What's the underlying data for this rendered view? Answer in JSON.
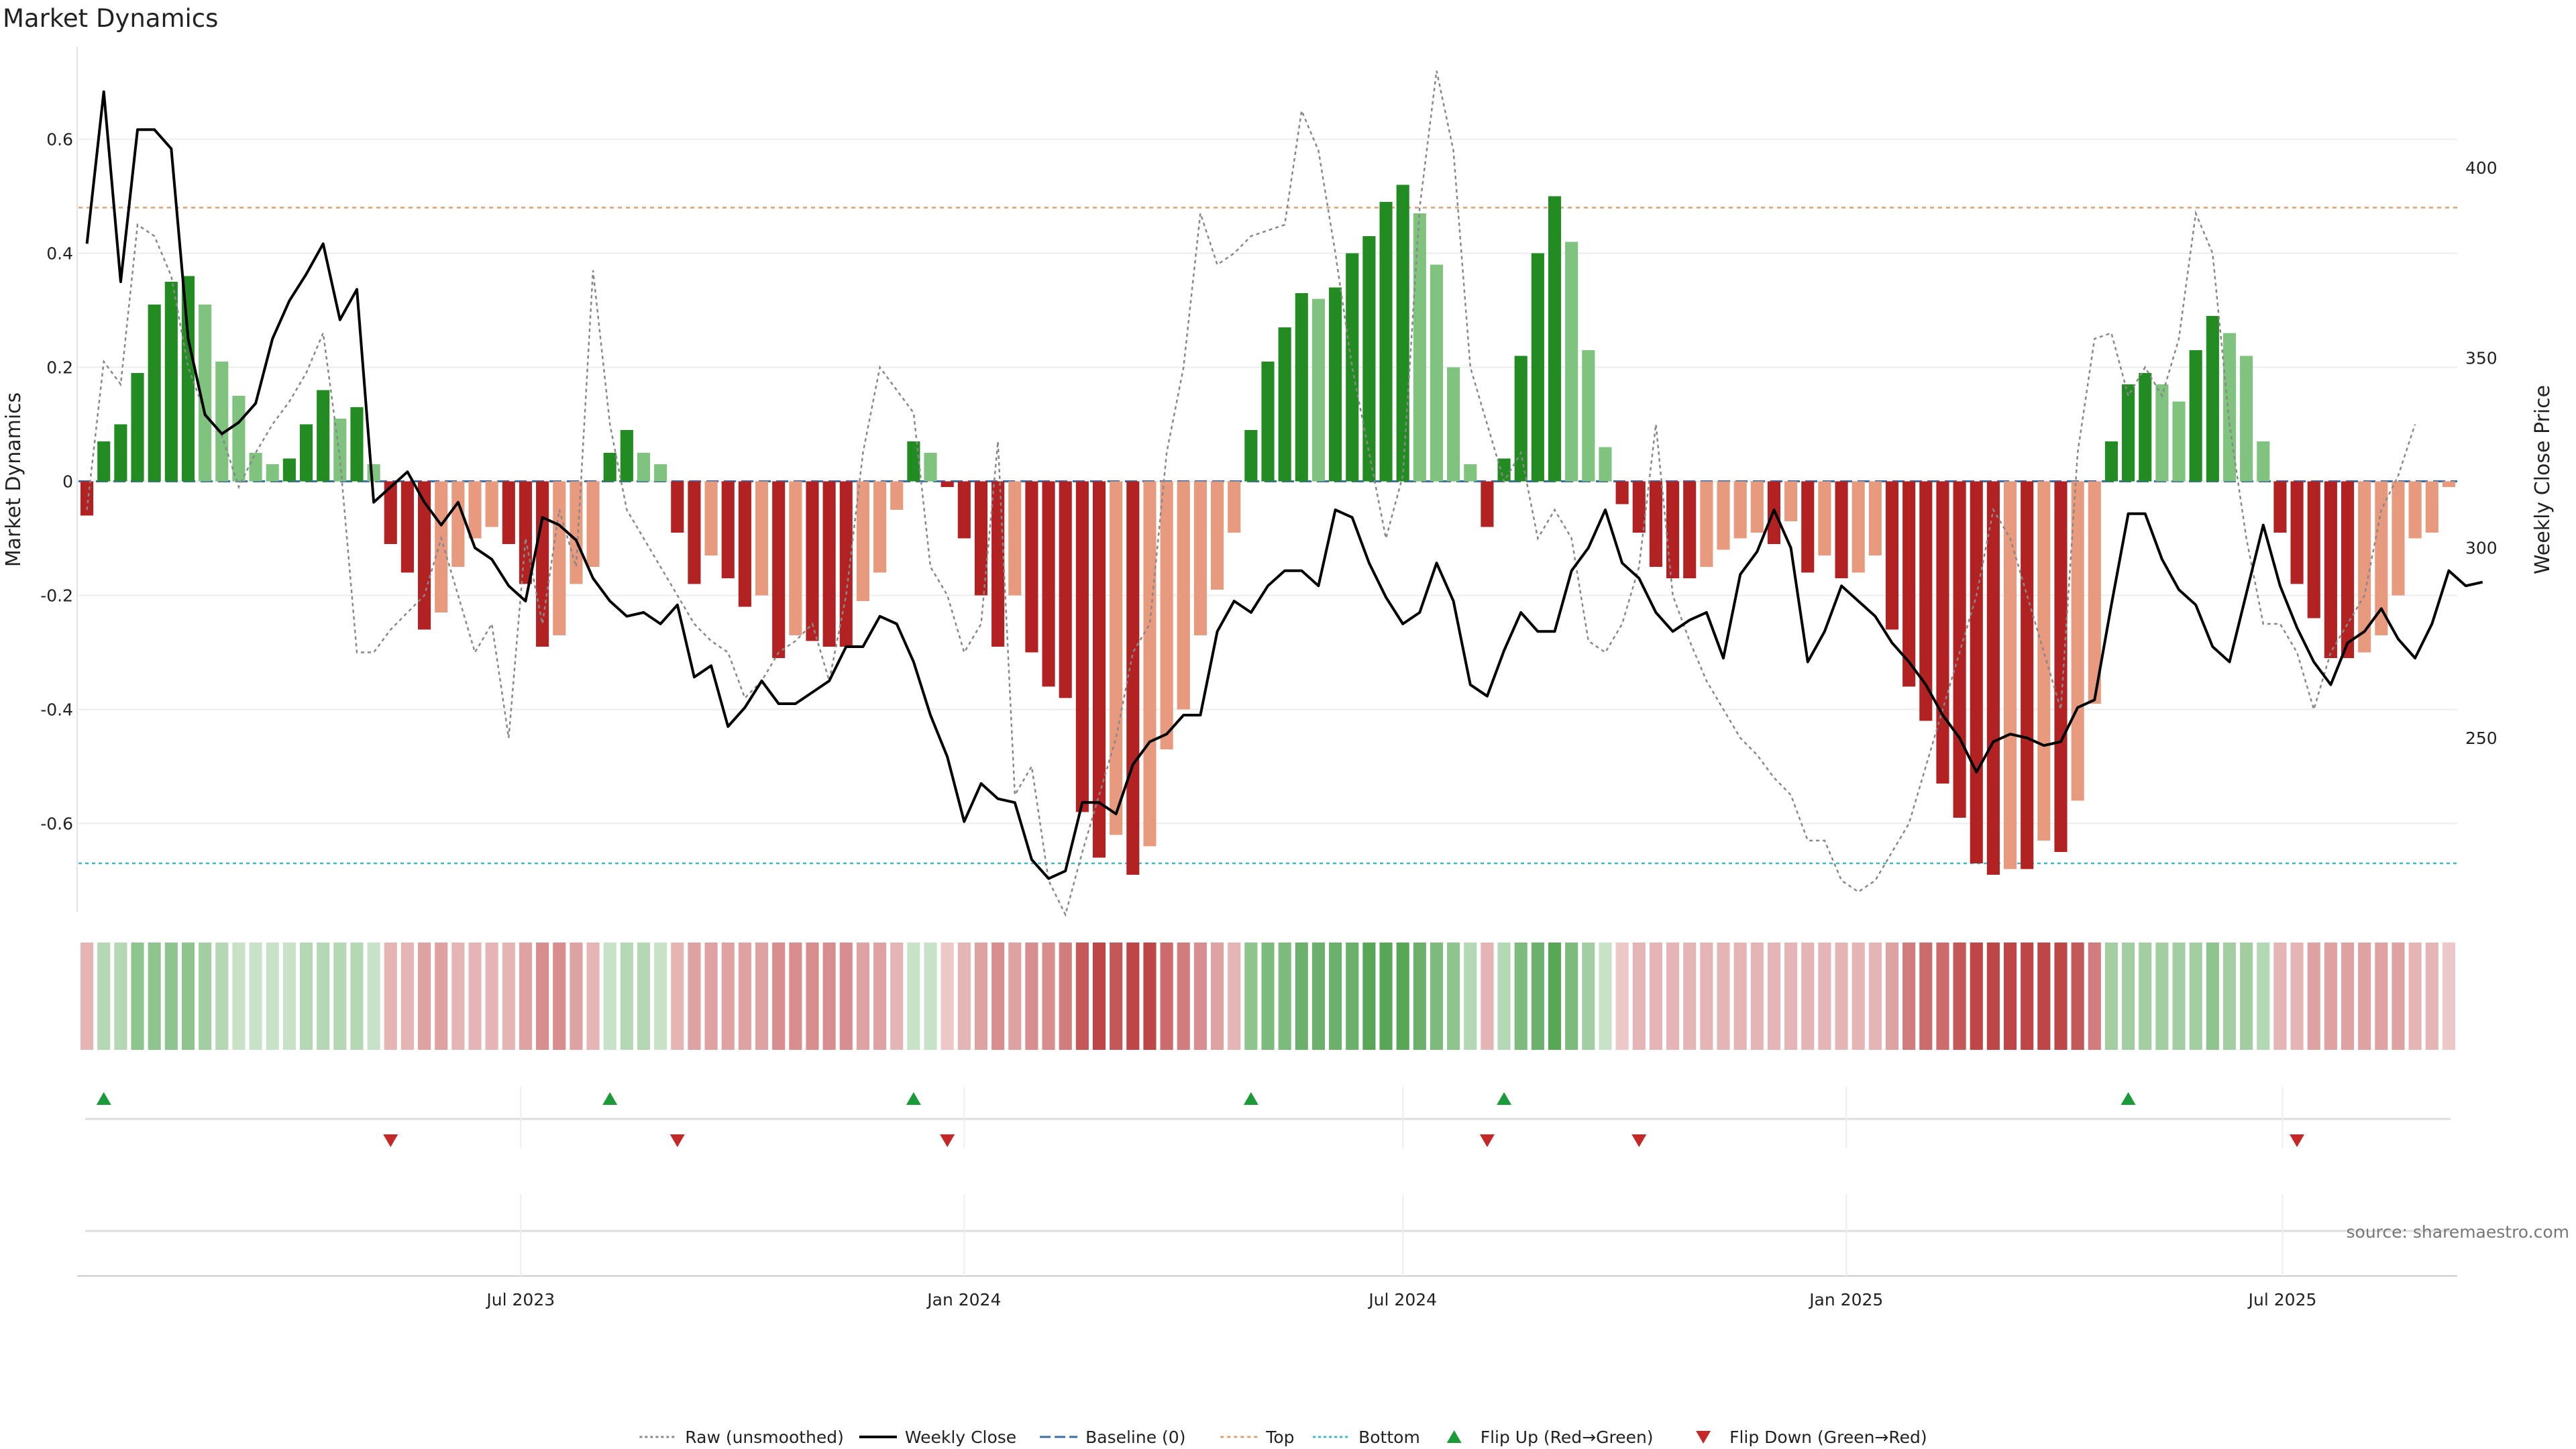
{
  "title": "Market Dynamics",
  "source": "source: sharemaestro.com",
  "colors": {
    "up_strong": "#228b22",
    "up_weak": "#7fc37f",
    "down_strong": "#b22222",
    "down_weak": "#e89a7e",
    "close": "#000000",
    "raw": "#888888",
    "baseline": "#3a6ea5",
    "top": "#e0a070",
    "bottom": "#3bb8c8",
    "flip_up": "#1a9a3a",
    "flip_down": "#c62828"
  },
  "legend": [
    {
      "key": "raw",
      "label": "Raw (unsmoothed)"
    },
    {
      "key": "close",
      "label": "Weekly Close"
    },
    {
      "key": "baseline",
      "label": "Baseline (0)"
    },
    {
      "key": "top",
      "label": "Top"
    },
    {
      "key": "bottom",
      "label": "Bottom"
    },
    {
      "key": "flip_up",
      "label": "Flip Up (Red→Green)"
    },
    {
      "key": "flip_down",
      "label": "Flip Down (Green→Red)"
    }
  ],
  "chart_data": {
    "type": "bar",
    "start_date": "2023-01-02",
    "left_axis": {
      "label": "Market Dynamics",
      "ylim": [
        -0.75,
        0.75
      ],
      "ticks": [
        "0.6",
        "0.4",
        "0.2",
        "0",
        "-0.2",
        "-0.4",
        "-0.6"
      ],
      "tick_values": [
        0.6,
        0.4,
        0.2,
        0,
        -0.2,
        -0.4,
        -0.6
      ]
    },
    "right_axis": {
      "label": "Weekly Close Price",
      "ylim": [
        205,
        430
      ],
      "ticks": [
        "400",
        "350",
        "300",
        "250"
      ],
      "tick_values": [
        400,
        350,
        300,
        250
      ]
    },
    "x_ticks": [
      {
        "label": "Jul 2023",
        "date": "2023-07-01"
      },
      {
        "label": "Jan 2024",
        "date": "2024-01-01"
      },
      {
        "label": "Jul 2024",
        "date": "2024-07-01"
      },
      {
        "label": "Jan 2025",
        "date": "2025-01-01"
      },
      {
        "label": "Jul 2025",
        "date": "2025-07-01"
      }
    ],
    "top_level": 0.48,
    "bottom_level": -0.67,
    "baseline": 0,
    "grid": true,
    "legend_position": "bottom",
    "smoothed": [
      -0.06,
      0.07,
      0.1,
      0.19,
      0.31,
      0.35,
      0.36,
      0.31,
      0.21,
      0.15,
      0.05,
      0.03,
      0.04,
      0.1,
      0.16,
      0.11,
      0.13,
      0.03,
      -0.11,
      -0.16,
      -0.26,
      -0.23,
      -0.15,
      -0.1,
      -0.08,
      -0.11,
      -0.18,
      -0.29,
      -0.27,
      -0.18,
      -0.15,
      0.05,
      0.09,
      0.05,
      0.03,
      -0.09,
      -0.18,
      -0.13,
      -0.17,
      -0.22,
      -0.2,
      -0.31,
      -0.27,
      -0.28,
      -0.29,
      -0.29,
      -0.21,
      -0.16,
      -0.05,
      0.07,
      0.05,
      -0.01,
      -0.1,
      -0.2,
      -0.29,
      -0.2,
      -0.3,
      -0.36,
      -0.38,
      -0.58,
      -0.66,
      -0.62,
      -0.69,
      -0.64,
      -0.47,
      -0.4,
      -0.27,
      -0.19,
      -0.09,
      0.09,
      0.21,
      0.27,
      0.33,
      0.32,
      0.34,
      0.4,
      0.43,
      0.49,
      0.52,
      0.47,
      0.38,
      0.2,
      0.03,
      -0.08,
      0.04,
      0.22,
      0.4,
      0.5,
      0.42,
      0.23,
      0.06,
      -0.04,
      -0.09,
      -0.15,
      -0.17,
      -0.17,
      -0.15,
      -0.12,
      -0.1,
      -0.09,
      -0.11,
      -0.07,
      -0.16,
      -0.13,
      -0.17,
      -0.16,
      -0.13,
      -0.26,
      -0.36,
      -0.42,
      -0.53,
      -0.59,
      -0.67,
      -0.69,
      -0.68,
      -0.68,
      -0.63,
      -0.65,
      -0.56,
      -0.39,
      0.07,
      0.17,
      0.19,
      0.17,
      0.14,
      0.23,
      0.29,
      0.26,
      0.22,
      0.07,
      -0.09,
      -0.18,
      -0.24,
      -0.31,
      -0.31,
      -0.3,
      -0.27,
      -0.2,
      -0.1,
      -0.09,
      -0.01
    ],
    "raw": [
      -0.05,
      0.21,
      0.17,
      0.45,
      0.43,
      0.36,
      0.2,
      0.12,
      0.08,
      -0.01,
      0.05,
      0.1,
      0.14,
      0.19,
      0.26,
      0.04,
      -0.3,
      -0.3,
      -0.26,
      -0.23,
      -0.2,
      -0.1,
      -0.2,
      -0.3,
      -0.25,
      -0.45,
      -0.1,
      -0.25,
      -0.05,
      -0.15,
      0.37,
      0.1,
      -0.05,
      -0.1,
      -0.15,
      -0.2,
      -0.25,
      -0.28,
      -0.3,
      -0.38,
      -0.35,
      -0.3,
      -0.28,
      -0.25,
      -0.35,
      -0.2,
      0.05,
      0.2,
      0.16,
      0.12,
      -0.15,
      -0.2,
      -0.3,
      -0.25,
      0.07,
      -0.55,
      -0.5,
      -0.7,
      -0.76,
      -0.65,
      -0.55,
      -0.45,
      -0.3,
      -0.25,
      0.05,
      0.2,
      0.47,
      0.38,
      0.4,
      0.43,
      0.44,
      0.45,
      0.65,
      0.58,
      0.4,
      0.2,
      0.05,
      -0.1,
      0.01,
      0.48,
      0.72,
      0.58,
      0.2,
      0.1,
      0.0,
      0.05,
      -0.1,
      -0.05,
      -0.1,
      -0.28,
      -0.3,
      -0.25,
      -0.15,
      0.1,
      -0.2,
      -0.28,
      -0.35,
      -0.4,
      -0.45,
      -0.48,
      -0.52,
      -0.55,
      -0.63,
      -0.63,
      -0.7,
      -0.72,
      -0.7,
      -0.65,
      -0.6,
      -0.5,
      -0.4,
      -0.3,
      -0.2,
      -0.05,
      -0.1,
      -0.2,
      -0.3,
      -0.4,
      0.05,
      0.25,
      0.26,
      0.15,
      0.2,
      0.15,
      0.25,
      0.47,
      0.4,
      0.1,
      -0.1,
      -0.25,
      -0.25,
      -0.3,
      -0.4,
      -0.3,
      -0.25,
      -0.2,
      -0.05,
      0.01,
      0.1
    ],
    "close": [
      380,
      420,
      370,
      410,
      410,
      405,
      355,
      335,
      330,
      333,
      338,
      355,
      365,
      372,
      380,
      360,
      368,
      312,
      316,
      320,
      312,
      306,
      312,
      300,
      297,
      290,
      286,
      308,
      306,
      302,
      292,
      286,
      282,
      283,
      280,
      285,
      266,
      269,
      253,
      258,
      265,
      259,
      259,
      262,
      265,
      274,
      274,
      282,
      280,
      270,
      256,
      245,
      228,
      238,
      234,
      233,
      218,
      213,
      215,
      233,
      233,
      230,
      243,
      249,
      251,
      256,
      256,
      278,
      286,
      283,
      290,
      294,
      294,
      290,
      310,
      308,
      296,
      287,
      280,
      283,
      296,
      286,
      264,
      261,
      273,
      283,
      278,
      278,
      294,
      300,
      310,
      296,
      292,
      283,
      278,
      281,
      283,
      271,
      293,
      299,
      310,
      300,
      270,
      278,
      290,
      286,
      282,
      275,
      270,
      264,
      256,
      250,
      241,
      249,
      251,
      250,
      248,
      249,
      258,
      260,
      285,
      309,
      309,
      297,
      289,
      285,
      274,
      270,
      288,
      306,
      290,
      279,
      270,
      264,
      275,
      278,
      284,
      276,
      271,
      280,
      294,
      290,
      291
    ],
    "strip": [
      -0.3,
      0.3,
      0.3,
      0.5,
      0.5,
      0.5,
      0.5,
      0.4,
      0.3,
      0.2,
      0.2,
      0.2,
      0.2,
      0.3,
      0.3,
      0.3,
      0.3,
      0.2,
      -0.3,
      -0.3,
      -0.4,
      -0.4,
      -0.3,
      -0.3,
      -0.3,
      -0.3,
      -0.4,
      -0.5,
      -0.5,
      -0.4,
      -0.3,
      0.2,
      0.3,
      0.3,
      0.2,
      -0.3,
      -0.4,
      -0.4,
      -0.4,
      -0.4,
      -0.4,
      -0.5,
      -0.5,
      -0.5,
      -0.5,
      -0.5,
      -0.4,
      -0.4,
      -0.3,
      0.2,
      0.2,
      -0.2,
      -0.3,
      -0.4,
      -0.5,
      -0.4,
      -0.5,
      -0.5,
      -0.6,
      -0.8,
      -0.9,
      -0.8,
      -0.9,
      -0.9,
      -0.7,
      -0.6,
      -0.5,
      -0.4,
      -0.3,
      0.5,
      0.6,
      0.6,
      0.7,
      0.7,
      0.7,
      0.7,
      0.8,
      0.8,
      0.8,
      0.7,
      0.6,
      0.5,
      0.3,
      -0.3,
      0.3,
      0.6,
      0.7,
      0.8,
      0.6,
      0.4,
      0.2,
      -0.2,
      -0.3,
      -0.3,
      -0.3,
      -0.3,
      -0.3,
      -0.3,
      -0.3,
      -0.3,
      -0.3,
      -0.3,
      -0.3,
      -0.3,
      -0.3,
      -0.3,
      -0.3,
      -0.4,
      -0.6,
      -0.7,
      -0.7,
      -0.8,
      -0.9,
      -0.9,
      -0.9,
      -0.9,
      -0.9,
      -0.9,
      -0.8,
      -0.6,
      0.4,
      0.4,
      0.4,
      0.4,
      0.4,
      0.4,
      0.5,
      0.4,
      0.4,
      0.3,
      -0.3,
      -0.3,
      -0.4,
      -0.4,
      -0.4,
      -0.4,
      -0.4,
      -0.4,
      -0.3,
      -0.3,
      -0.2
    ],
    "flips_up": [
      1,
      31,
      49,
      69,
      84,
      121
    ],
    "flips_down": [
      18,
      35,
      51,
      83,
      92,
      131
    ]
  }
}
